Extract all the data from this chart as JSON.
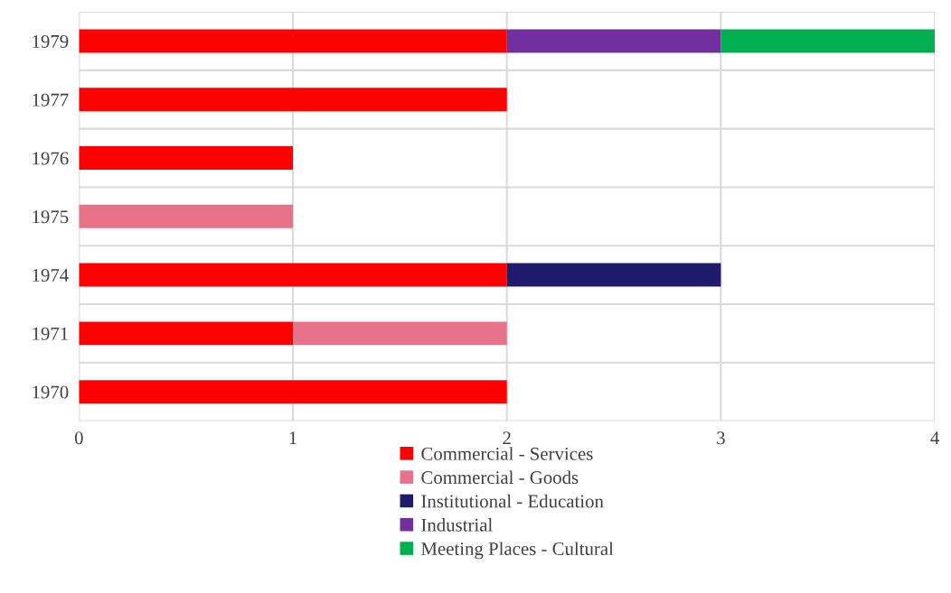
{
  "chart_data": {
    "type": "bar",
    "orientation": "horizontal",
    "stacked": true,
    "categories": [
      "1979",
      "1977",
      "1976",
      "1975",
      "1974",
      "1971",
      "1970"
    ],
    "series": [
      {
        "name": "Commercial - Services",
        "color": "#ff0000",
        "values": [
          2,
          2,
          1,
          null,
          2,
          1,
          2
        ]
      },
      {
        "name": "Commercial - Goods",
        "color": "#e8728a",
        "values": [
          null,
          null,
          null,
          1,
          null,
          1,
          null
        ]
      },
      {
        "name": "Institutional - Education",
        "color": "#1f1a6b",
        "values": [
          null,
          null,
          null,
          null,
          1,
          null,
          null
        ]
      },
      {
        "name": "Industrial",
        "color": "#7030a0",
        "values": [
          1,
          null,
          null,
          null,
          null,
          null,
          null
        ]
      },
      {
        "name": "Meeting Places - Cultural",
        "color": "#00b050",
        "values": [
          1,
          null,
          null,
          null,
          null,
          null,
          null
        ]
      }
    ],
    "xlim": [
      0,
      4
    ],
    "xticks": [
      0,
      1,
      2,
      3,
      4
    ],
    "grid": true,
    "legend": "bottom"
  }
}
